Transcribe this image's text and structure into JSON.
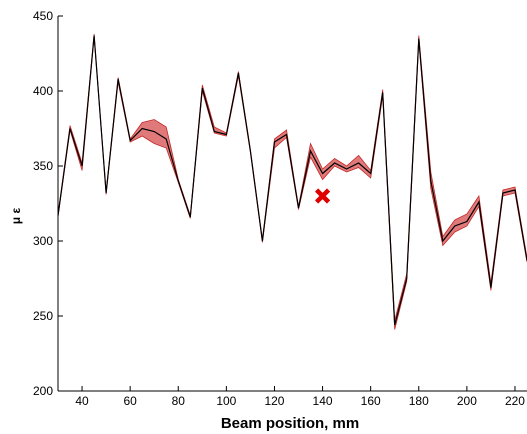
{
  "chart_data": {
    "type": "line",
    "title": "",
    "xlabel": "Beam position, mm",
    "ylabel": "μ ε",
    "xlim": [
      30,
      225
    ],
    "ylim": [
      200,
      450
    ],
    "xticks": [
      40,
      60,
      80,
      100,
      120,
      140,
      160,
      180,
      200,
      220
    ],
    "yticks": [
      200,
      250,
      300,
      350,
      400,
      450
    ],
    "grid": false,
    "legend": "none",
    "colors": {
      "line": "#000000",
      "band_fill": "#e07a7a",
      "band_edge": "#c62828",
      "marker": "#e00000"
    },
    "series": [
      {
        "type": "line-with-band",
        "x": [
          30,
          35,
          40,
          45,
          50,
          55,
          60,
          65,
          70,
          75,
          80,
          85,
          90,
          95,
          100,
          105,
          110,
          115,
          120,
          125,
          130,
          135,
          140,
          145,
          150,
          155,
          160,
          165,
          170,
          175,
          180,
          185,
          190,
          195,
          200,
          205,
          210,
          215,
          220,
          225
        ],
        "y": [
          317,
          375,
          350,
          437,
          332,
          408,
          367,
          375,
          373,
          368,
          340,
          316,
          402,
          373,
          371,
          412,
          360,
          300,
          366,
          371,
          322,
          360,
          345,
          352,
          348,
          352,
          345,
          399,
          244,
          275,
          435,
          340,
          300,
          310,
          313,
          326,
          269,
          332,
          334,
          287
        ],
        "lower": [
          316,
          374,
          347,
          436,
          331,
          406,
          366,
          370,
          365,
          362,
          339,
          315,
          400,
          372,
          370,
          410,
          359,
          299,
          362,
          369,
          321,
          356,
          341,
          350,
          346,
          349,
          342,
          397,
          241,
          273,
          433,
          335,
          297,
          306,
          310,
          323,
          267,
          330,
          332,
          286
        ],
        "upper": [
          318,
          377,
          352,
          438,
          333,
          409,
          368,
          379,
          381,
          376,
          341,
          317,
          404,
          376,
          372,
          413,
          361,
          301,
          368,
          374,
          323,
          365,
          348,
          355,
          350,
          357,
          347,
          401,
          247,
          278,
          437,
          346,
          303,
          314,
          318,
          330,
          272,
          334,
          336,
          289
        ]
      },
      {
        "type": "marker",
        "symbol": "x",
        "x": [
          140
        ],
        "y": [
          330
        ]
      }
    ]
  }
}
